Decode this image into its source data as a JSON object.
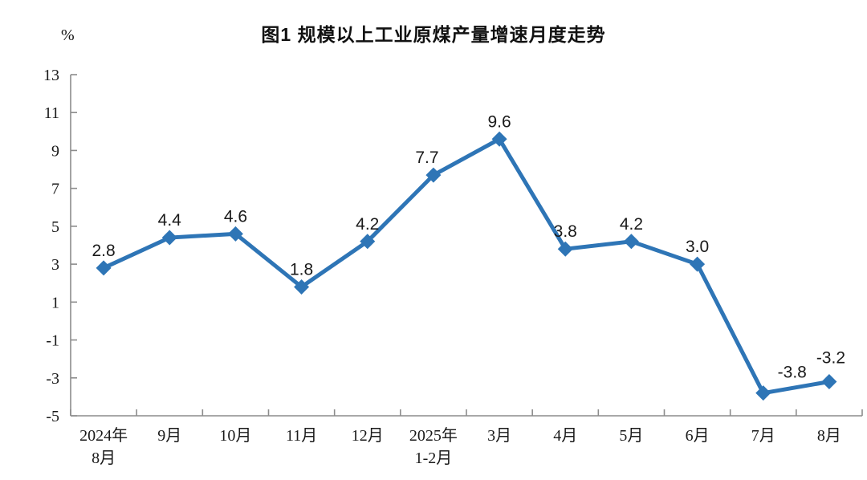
{
  "chart_data": {
    "type": "line",
    "title": "图1  规模以上工业原煤产量增速月度走势",
    "xlabel": "",
    "ylabel": "%",
    "categories": [
      "2024年8月",
      "9月",
      "10月",
      "11月",
      "12月",
      "2025年1-2月",
      "3月",
      "4月",
      "5月",
      "6月",
      "7月",
      "8月"
    ],
    "category_lines": [
      [
        "2024年",
        "8月"
      ],
      [
        "9月"
      ],
      [
        "10月"
      ],
      [
        "11月"
      ],
      [
        "12月"
      ],
      [
        "2025年",
        "1-2月"
      ],
      [
        "3月"
      ],
      [
        "4月"
      ],
      [
        "5月"
      ],
      [
        "6月"
      ],
      [
        "7月"
      ],
      [
        "8月"
      ]
    ],
    "series": [
      {
        "name": "规模以上工业原煤产量增速",
        "values": [
          2.8,
          4.4,
          4.6,
          1.8,
          4.2,
          7.7,
          9.6,
          3.8,
          4.2,
          3.0,
          -3.8,
          -3.2
        ]
      }
    ],
    "data_labels": [
      "2.8",
      "4.4",
      "4.6",
      "1.8",
      "4.2",
      "7.7",
      "9.6",
      "3.8",
      "4.2",
      "3.0",
      "-3.8",
      "-3.2"
    ],
    "ylim": [
      -5,
      13
    ],
    "ytick_step": 2,
    "yticks": [
      13,
      11,
      9,
      7,
      5,
      3,
      1,
      -1,
      -3,
      -5
    ],
    "grid": false,
    "legend": "none",
    "marker": "diamond",
    "line_color": "#2E75B6",
    "axis_color": "#8C8C8C",
    "label_color": "#1a1a1a",
    "label_offsets": {
      "5": [
        -8,
        0
      ],
      "10": [
        36,
        -4
      ],
      "11": [
        2,
        -8
      ]
    }
  }
}
